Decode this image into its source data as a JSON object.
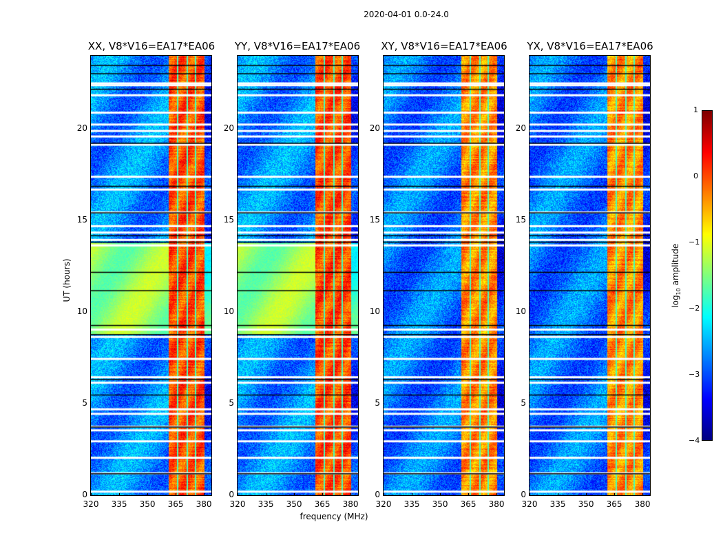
{
  "chart_data": [
    {
      "type": "heatmap",
      "panel": "XX",
      "title": "XX, V8*V16=EA17*EA06",
      "xlabel": "",
      "ylabel": "UT (hours)",
      "xlim": [
        320,
        384
      ],
      "ylim": [
        0,
        24
      ],
      "xticks": [
        "320",
        "335",
        "350",
        "365",
        "380"
      ],
      "yticks": [
        "0",
        "5",
        "10",
        "15",
        "20"
      ],
      "rfi_band_MHz": [
        361,
        380
      ],
      "background_log10_amp": -2.7,
      "band_log10_amp": 0.0,
      "enhanced_interval_hours": [
        8.8,
        13.8
      ],
      "enhanced_log10_amp": -1.4
    },
    {
      "type": "heatmap",
      "panel": "YY",
      "title": "YY, V8*V16=EA17*EA06",
      "xlabel": "frequency (MHz)",
      "ylabel": "",
      "xlim": [
        320,
        384
      ],
      "ylim": [
        0,
        24
      ],
      "xticks": [
        "320",
        "335",
        "350",
        "365",
        "380"
      ],
      "yticks": [
        "0",
        "5",
        "10",
        "15",
        "20"
      ],
      "rfi_band_MHz": [
        361,
        380
      ],
      "background_log10_amp": -2.7,
      "band_log10_amp": 0.0,
      "enhanced_interval_hours": [
        8.8,
        13.8
      ],
      "enhanced_log10_amp": -1.4
    },
    {
      "type": "heatmap",
      "panel": "XY",
      "title": "XY, V8*V16=EA17*EA06",
      "xlabel": "",
      "ylabel": "",
      "xlim": [
        320,
        384
      ],
      "ylim": [
        0,
        24
      ],
      "xticks": [
        "320",
        "335",
        "350",
        "365",
        "380"
      ],
      "yticks": [
        "0",
        "5",
        "10",
        "15",
        "20"
      ],
      "rfi_band_MHz": [
        361,
        380
      ],
      "background_log10_amp": -2.8,
      "band_log10_amp": -0.3,
      "enhanced_interval_hours": null,
      "enhanced_log10_amp": null
    },
    {
      "type": "heatmap",
      "panel": "YX",
      "title": "YX, V8*V16=EA17*EA06",
      "xlabel": "",
      "ylabel": "",
      "xlim": [
        320,
        384
      ],
      "ylim": [
        0,
        24
      ],
      "xticks": [
        "320",
        "335",
        "350",
        "365",
        "380"
      ],
      "yticks": [
        "0",
        "5",
        "10",
        "15",
        "20"
      ],
      "rfi_band_MHz": [
        361,
        380
      ],
      "background_log10_amp": -2.8,
      "band_log10_amp": -0.3,
      "enhanced_interval_hours": null,
      "enhanced_log10_amp": null
    }
  ],
  "figure": {
    "suptitle": "2020-04-01 0.0-24.0",
    "xlabel": "frequency (MHz)",
    "ylabel": "UT (hours)"
  },
  "colorbar": {
    "label": "log10 amplitude",
    "label_main": "log",
    "label_sub": "10",
    "label_rest": " amplitude",
    "range": [
      -4,
      1
    ],
    "ticks": [
      "1",
      "0",
      "−1",
      "−2",
      "−3",
      "−4"
    ],
    "colormap": "jet"
  },
  "flagged_gaps_hours": [
    22.55,
    22.45,
    21.9,
    20.95,
    20.3,
    19.95,
    19.65,
    19.2,
    17.45,
    16.75,
    15.5,
    14.75,
    14.4,
    14.0,
    13.7,
    9.1,
    8.7,
    7.5,
    6.5,
    6.2,
    4.75,
    4.5,
    3.8,
    3.6,
    3.0,
    2.1,
    1.25,
    0.25
  ],
  "black_gaps_hours": [
    23.5,
    23.05,
    22.2,
    19.25,
    16.9,
    15.45,
    14.2,
    13.85,
    12.2,
    11.2,
    9.3,
    8.8,
    6.35,
    5.5,
    3.75,
    1.2
  ],
  "subband_dividers_MHz": [
    366,
    371,
    375.5
  ]
}
